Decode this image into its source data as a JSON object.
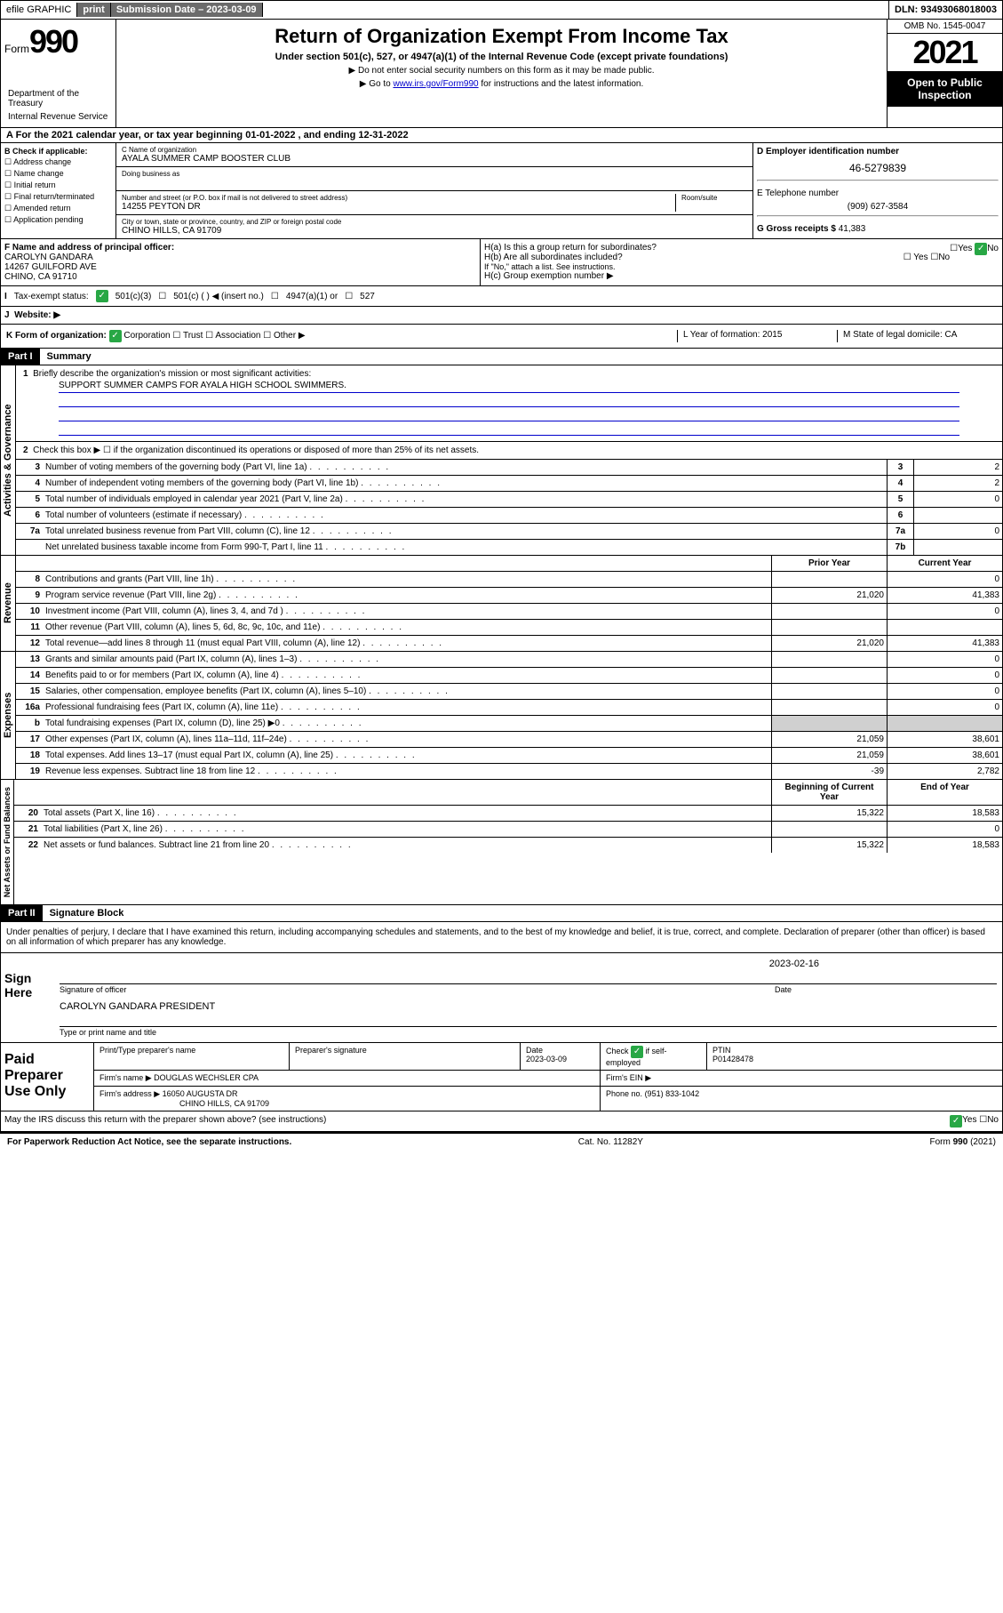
{
  "topbar": {
    "efile": "efile GRAPHIC",
    "print": "print",
    "submission_label": "Submission Date – 2023-03-09",
    "dln": "DLN: 93493068018003"
  },
  "header": {
    "form_label": "Form",
    "form_number": "990",
    "title": "Return of Organization Exempt From Income Tax",
    "subtitle": "Under section 501(c), 527, or 4947(a)(1) of the Internal Revenue Code (except private foundations)",
    "note1": "▶ Do not enter social security numbers on this form as it may be made public.",
    "note2_pre": "▶ Go to ",
    "note2_link": "www.irs.gov/Form990",
    "note2_post": " for instructions and the latest information.",
    "omb": "OMB No. 1545-0047",
    "year": "2021",
    "inspection": "Open to Public Inspection",
    "dept": "Department of the Treasury",
    "irs": "Internal Revenue Service"
  },
  "period": {
    "text": "For the 2021 calendar year, or tax year beginning 01-01-2022   , and ending 12-31-2022"
  },
  "sectionB": {
    "label": "B Check if applicable:",
    "opts": [
      "Address change",
      "Name change",
      "Initial return",
      "Final return/terminated",
      "Amended return",
      "Application pending"
    ]
  },
  "sectionC": {
    "name_label": "C Name of organization",
    "org_name": "AYALA SUMMER CAMP BOOSTER CLUB",
    "dba_label": "Doing business as",
    "addr_label": "Number and street (or P.O. box if mail is not delivered to street address)",
    "room_label": "Room/suite",
    "addr": "14255 PEYTON DR",
    "city_label": "City or town, state or province, country, and ZIP or foreign postal code",
    "city": "CHINO HILLS, CA  91709"
  },
  "sectionD": {
    "ein_label": "D Employer identification number",
    "ein": "46-5279839",
    "phone_label": "E Telephone number",
    "phone": "(909) 627-3584",
    "gross_label": "G Gross receipts $",
    "gross": "41,383"
  },
  "sectionF": {
    "label": "F  Name and address of principal officer:",
    "name": "CAROLYN GANDARA",
    "addr1": "14267 GUILFORD AVE",
    "addr2": "CHINO, CA  91710"
  },
  "sectionH": {
    "ha": "H(a)  Is this a group return for subordinates?",
    "hb": "H(b)  Are all subordinates included?",
    "hb_note": "If \"No,\" attach a list. See instructions.",
    "hc": "H(c)  Group exemption number ▶",
    "yes": "Yes",
    "no": "No"
  },
  "sectionI": {
    "label": "Tax-exempt status:",
    "opt1": "501(c)(3)",
    "opt2": "501(c) (   ) ◀ (insert no.)",
    "opt3": "4947(a)(1) or",
    "opt4": "527"
  },
  "sectionJ": {
    "label": "Website: ▶"
  },
  "sectionK": {
    "label": "K Form of organization:",
    "opts": [
      "Corporation",
      "Trust",
      "Association",
      "Other ▶"
    ],
    "year_label": "L Year of formation: 2015",
    "state_label": "M State of legal domicile: CA"
  },
  "part1": {
    "hdr": "Part I",
    "title": "Summary",
    "line1": "Briefly describe the organization's mission or most significant activities:",
    "mission": "SUPPORT SUMMER CAMPS FOR AYALA HIGH SCHOOL SWIMMERS.",
    "line2": "Check this box ▶ ☐  if the organization discontinued its operations or disposed of more than 25% of its net assets.",
    "vlabel_gov": "Activities & Governance",
    "vlabel_rev": "Revenue",
    "vlabel_exp": "Expenses",
    "vlabel_net": "Net Assets or Fund Balances"
  },
  "govlines": [
    {
      "n": "3",
      "t": "Number of voting members of the governing body (Part VI, line 1a)",
      "b": "3",
      "v": "2"
    },
    {
      "n": "4",
      "t": "Number of independent voting members of the governing body (Part VI, line 1b)",
      "b": "4",
      "v": "2"
    },
    {
      "n": "5",
      "t": "Total number of individuals employed in calendar year 2021 (Part V, line 2a)",
      "b": "5",
      "v": "0"
    },
    {
      "n": "6",
      "t": "Total number of volunteers (estimate if necessary)",
      "b": "6",
      "v": ""
    },
    {
      "n": "7a",
      "t": "Total unrelated business revenue from Part VIII, column (C), line 12",
      "b": "7a",
      "v": "0"
    },
    {
      "n": "",
      "t": "Net unrelated business taxable income from Form 990-T, Part I, line 11",
      "b": "7b",
      "v": ""
    }
  ],
  "revhdr": {
    "prior": "Prior Year",
    "current": "Current Year"
  },
  "revlines": [
    {
      "n": "8",
      "t": "Contributions and grants (Part VIII, line 1h)",
      "p": "",
      "c": "0"
    },
    {
      "n": "9",
      "t": "Program service revenue (Part VIII, line 2g)",
      "p": "21,020",
      "c": "41,383"
    },
    {
      "n": "10",
      "t": "Investment income (Part VIII, column (A), lines 3, 4, and 7d )",
      "p": "",
      "c": "0"
    },
    {
      "n": "11",
      "t": "Other revenue (Part VIII, column (A), lines 5, 6d, 8c, 9c, 10c, and 11e)",
      "p": "",
      "c": ""
    },
    {
      "n": "12",
      "t": "Total revenue—add lines 8 through 11 (must equal Part VIII, column (A), line 12)",
      "p": "21,020",
      "c": "41,383"
    }
  ],
  "explines": [
    {
      "n": "13",
      "t": "Grants and similar amounts paid (Part IX, column (A), lines 1–3)",
      "p": "",
      "c": "0"
    },
    {
      "n": "14",
      "t": "Benefits paid to or for members (Part IX, column (A), line 4)",
      "p": "",
      "c": "0"
    },
    {
      "n": "15",
      "t": "Salaries, other compensation, employee benefits (Part IX, column (A), lines 5–10)",
      "p": "",
      "c": "0"
    },
    {
      "n": "16a",
      "t": "Professional fundraising fees (Part IX, column (A), line 11e)",
      "p": "",
      "c": "0"
    },
    {
      "n": "b",
      "t": "Total fundraising expenses (Part IX, column (D), line 25) ▶0",
      "p": "shaded",
      "c": "shaded"
    },
    {
      "n": "17",
      "t": "Other expenses (Part IX, column (A), lines 11a–11d, 11f–24e)",
      "p": "21,059",
      "c": "38,601"
    },
    {
      "n": "18",
      "t": "Total expenses. Add lines 13–17 (must equal Part IX, column (A), line 25)",
      "p": "21,059",
      "c": "38,601"
    },
    {
      "n": "19",
      "t": "Revenue less expenses. Subtract line 18 from line 12",
      "p": "-39",
      "c": "2,782"
    }
  ],
  "nethdr": {
    "begin": "Beginning of Current Year",
    "end": "End of Year"
  },
  "netlines": [
    {
      "n": "20",
      "t": "Total assets (Part X, line 16)",
      "p": "15,322",
      "c": "18,583"
    },
    {
      "n": "21",
      "t": "Total liabilities (Part X, line 26)",
      "p": "",
      "c": "0"
    },
    {
      "n": "22",
      "t": "Net assets or fund balances. Subtract line 21 from line 20",
      "p": "15,322",
      "c": "18,583"
    }
  ],
  "part2": {
    "hdr": "Part II",
    "title": "Signature Block",
    "decl": "Under penalties of perjury, I declare that I have examined this return, including accompanying schedules and statements, and to the best of my knowledge and belief, it is true, correct, and complete. Declaration of preparer (other than officer) is based on all information of which preparer has any knowledge."
  },
  "sign": {
    "label": "Sign Here",
    "sig_label": "Signature of officer",
    "date": "2023-02-16",
    "date_label": "Date",
    "name": "CAROLYN GANDARA  PRESIDENT",
    "name_label": "Type or print name and title"
  },
  "paid": {
    "label": "Paid Preparer Use Only",
    "prep_name_label": "Print/Type preparer's name",
    "prep_sig_label": "Preparer's signature",
    "date_label": "Date",
    "date": "2023-03-09",
    "check_label": "Check",
    "self_emp": "if self-employed",
    "ptin_label": "PTIN",
    "ptin": "P01428478",
    "firm_name_label": "Firm's name    ▶",
    "firm_name": "DOUGLAS WECHSLER CPA",
    "firm_ein_label": "Firm's EIN ▶",
    "firm_addr_label": "Firm's address ▶",
    "firm_addr1": "16050 AUGUSTA DR",
    "firm_addr2": "CHINO HILLS, CA  91709",
    "phone_label": "Phone no.",
    "phone": "(951) 833-1042"
  },
  "discuss": {
    "text": "May the IRS discuss this return with the preparer shown above? (see instructions)",
    "yes": "Yes",
    "no": "No"
  },
  "footer": {
    "left": "For Paperwork Reduction Act Notice, see the separate instructions.",
    "mid": "Cat. No. 11282Y",
    "right": "Form 990 (2021)"
  }
}
